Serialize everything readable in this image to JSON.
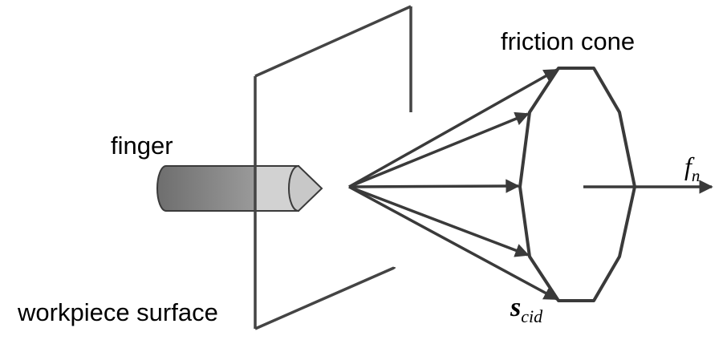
{
  "labels": {
    "finger": "finger",
    "workpiece_surface": "workpiece surface",
    "friction_cone": "friction cone",
    "normal_force_symbol": "f",
    "normal_force_subscript": "n",
    "cone_edge_symbol": "s",
    "cone_edge_subscript": "cid"
  },
  "colors": {
    "line": "#3a3a3a",
    "finger_body": "#808080",
    "finger_tip": "#d2d2d2",
    "text": "#000000"
  }
}
